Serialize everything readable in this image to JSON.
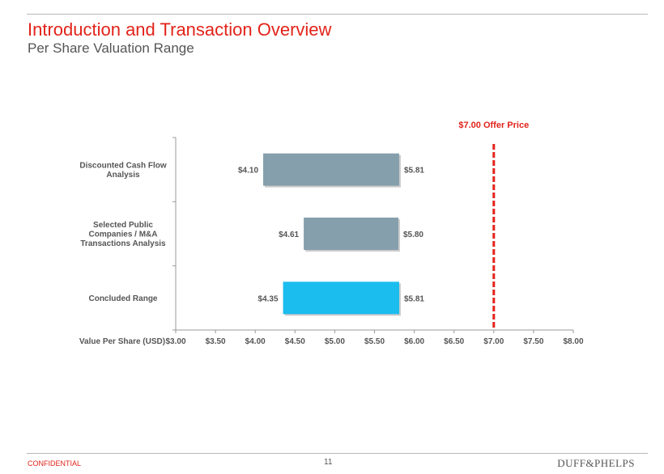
{
  "header": {
    "title": "Introduction and Transaction Overview",
    "subtitle": "Per Share Valuation Range"
  },
  "footer": {
    "confidential": "CONFIDENTIAL",
    "page_number": "11",
    "logo": "DUFF&PHELPS"
  },
  "colors": {
    "accent": "#e2231a",
    "bar_gray": "#869fac",
    "bar_highlight": "#1bbcee"
  },
  "chart_data": {
    "type": "bar",
    "orientation": "horizontal-floating",
    "categories": [
      {
        "lines": [
          "Discounted Cash Flow",
          "Analysis"
        ]
      },
      {
        "lines": [
          "Selected Public",
          "Companies / M&A",
          "Transactions Analysis"
        ]
      },
      {
        "lines": [
          "Concluded Range"
        ]
      }
    ],
    "series": [
      {
        "name": "Range",
        "low": [
          4.1,
          4.61,
          4.35
        ],
        "high": [
          5.81,
          5.8,
          5.81
        ],
        "low_labels": [
          "$4.10",
          "$4.61",
          "$4.35"
        ],
        "high_labels": [
          "$5.81",
          "$5.80",
          "$5.81"
        ],
        "highlight": [
          false,
          false,
          true
        ]
      }
    ],
    "xlabel": "Value Per Share (USD)",
    "xlim": [
      3.0,
      8.0
    ],
    "xticks": [
      "$3.00",
      "$3.50",
      "$4.00",
      "$4.50",
      "$5.00",
      "$5.50",
      "$6.00",
      "$6.50",
      "$7.00",
      "$7.50",
      "$8.00"
    ],
    "reference_line": {
      "value": 7.0,
      "label": "$7.00 Offer Price",
      "style": "dashed"
    },
    "grid": false
  }
}
